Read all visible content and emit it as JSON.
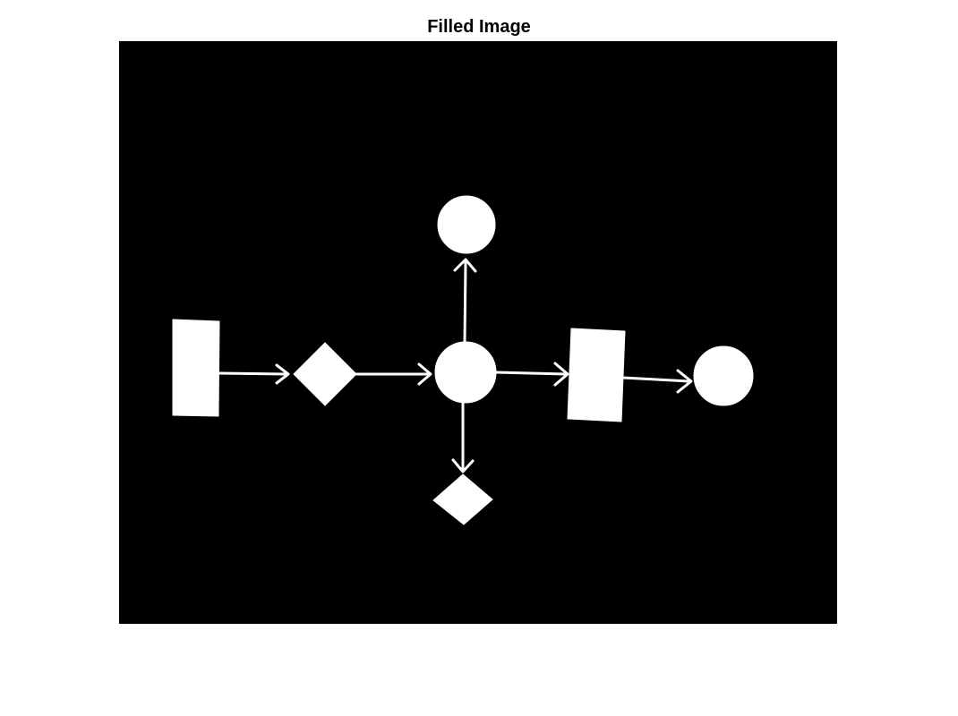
{
  "figure": {
    "title": "Filled Image"
  },
  "colors": {
    "figure_background": "#ffffff",
    "image_background": "#000000",
    "foreground": "#ffffff",
    "title_text": "#000000"
  },
  "diagram": {
    "style": "binary filled image of a hand-drawn flowchart",
    "shapes": [
      {
        "id": "rect-left",
        "kind": "rectangle"
      },
      {
        "id": "diamond-left",
        "kind": "diamond"
      },
      {
        "id": "circle-center",
        "kind": "circle"
      },
      {
        "id": "circle-top",
        "kind": "circle"
      },
      {
        "id": "diamond-bottom",
        "kind": "diamond"
      },
      {
        "id": "rect-right",
        "kind": "rectangle"
      },
      {
        "id": "circle-right",
        "kind": "circle"
      }
    ],
    "arrows": [
      {
        "from": "rect-left",
        "to": "diamond-left"
      },
      {
        "from": "diamond-left",
        "to": "circle-center"
      },
      {
        "from": "circle-center",
        "to": "circle-top"
      },
      {
        "from": "circle-center",
        "to": "diamond-bottom"
      },
      {
        "from": "circle-center",
        "to": "rect-right"
      },
      {
        "from": "rect-right",
        "to": "circle-right"
      }
    ]
  }
}
